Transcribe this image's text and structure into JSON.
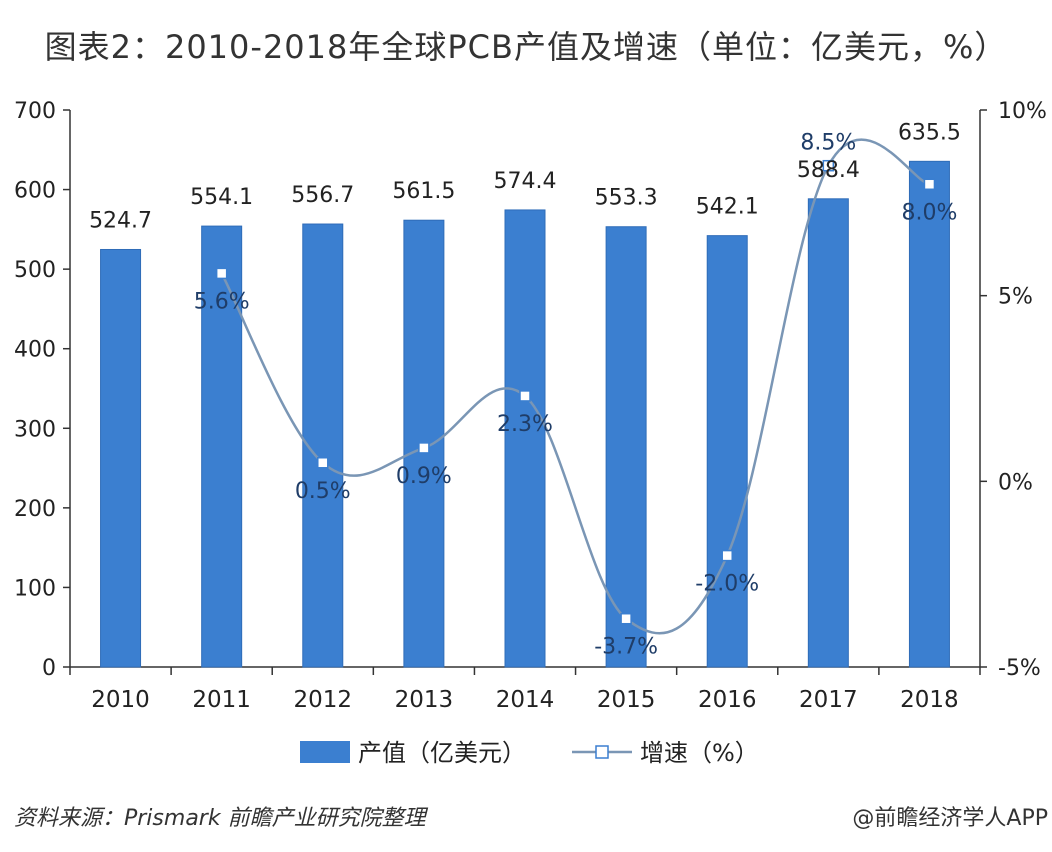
{
  "title": "图表2：2010-2018年全球PCB产值及增速（单位：亿美元，%）",
  "source": "资料来源：Prismark 前瞻产业研究院整理",
  "credit": "@前瞻经济学人APP",
  "chart_data": {
    "type": "bar",
    "categories": [
      "2010",
      "2011",
      "2012",
      "2013",
      "2014",
      "2015",
      "2016",
      "2017",
      "2018"
    ],
    "series": [
      {
        "name": "产值（亿美元）",
        "type": "bar",
        "axis": "left",
        "values": [
          524.7,
          554.1,
          556.7,
          561.5,
          574.4,
          553.3,
          542.1,
          588.4,
          635.5
        ],
        "labels": [
          "524.7",
          "554.1",
          "556.7",
          "561.5",
          "574.4",
          "553.3",
          "542.1",
          "588.4",
          "635.5"
        ]
      },
      {
        "name": "增速（%）",
        "type": "line",
        "axis": "right",
        "values": [
          null,
          5.6,
          0.5,
          0.9,
          2.3,
          -3.7,
          -2.0,
          8.5,
          8.0
        ],
        "labels": [
          "",
          "5.6%",
          "0.5%",
          "0.9%",
          "2.3%",
          "-3.7%",
          "-2.0%",
          "8.5%",
          "8.0%"
        ]
      }
    ],
    "y_left": {
      "min": 0,
      "max": 700,
      "ticks": [
        "0",
        "100",
        "200",
        "300",
        "400",
        "500",
        "600",
        "700"
      ]
    },
    "y_right": {
      "min": -5,
      "max": 10,
      "ticks": [
        "-5%",
        "0%",
        "5%",
        "10%"
      ]
    },
    "legend_position": "bottom",
    "colors": {
      "bar": "#3b7fd0",
      "bar_edge": "#2f6cb8",
      "line": "#7a96b5",
      "marker_fill": "#ffffff",
      "marker_edge": "#3b7fd0"
    }
  }
}
